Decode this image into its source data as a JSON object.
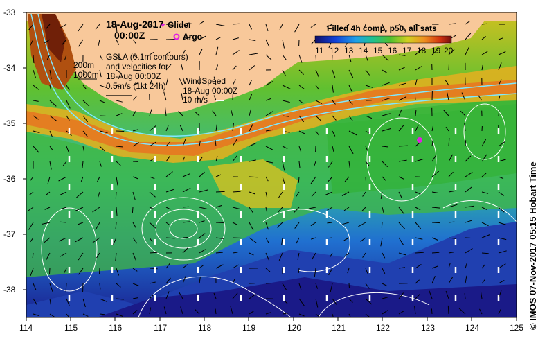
{
  "header": {
    "date": "18-Aug-2017",
    "time": "00:00Z"
  },
  "legend": {
    "glider_label": "Glider",
    "argo_label": "Argo",
    "colorbar_title": "Filled 4h comp, p50, all sats",
    "colorbar_ticks": [
      "11",
      "12",
      "13",
      "14",
      "15",
      "16",
      "17",
      "18",
      "19",
      "20"
    ],
    "colors": {
      "cold": "#1a1a8c",
      "mid": "#30c040",
      "warm": "#d86010",
      "land": "#f8c89a"
    }
  },
  "annotations": {
    "gsla_lines": [
      "GSLA (0.1m contours)",
      "and velocities for",
      "18-Aug 00:00Z",
      "0.5m/s (1kt 24h)"
    ],
    "isobath_lines": [
      "200m",
      "1000m"
    ],
    "wind_lines": [
      "WindSpeed",
      "18-Aug 00:00Z",
      "10 m/s"
    ]
  },
  "axes": {
    "x_ticks": [
      "114",
      "115",
      "116",
      "117",
      "118",
      "119",
      "120",
      "121",
      "122",
      "123",
      "124",
      "125"
    ],
    "y_ticks": [
      "-33",
      "-34",
      "-35",
      "-36",
      "-37",
      "-38"
    ]
  },
  "markers": [
    {
      "type": "argo",
      "lon": 122.8,
      "lat": -35.3
    }
  ],
  "credit": "© IMOS 07-Nov-2017 05:15 Hobart Time"
}
